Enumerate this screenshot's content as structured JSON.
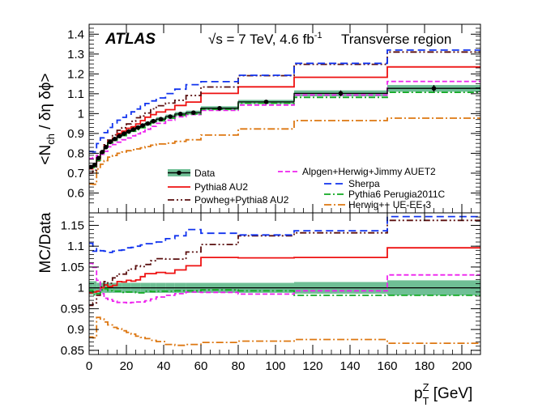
{
  "chart_data": [
    {
      "type": "line",
      "panel": "top",
      "title": "Transverse region",
      "experiment": "ATLAS",
      "energy_label": "√s = 7 TeV, 4.6 fb",
      "lumi_exponent": "-1",
      "ylabel": "<N",
      "ylabel_sub": "ch",
      "ylabel_tail": " / δη δϕ>",
      "ylim": [
        0.5,
        1.45
      ],
      "yticks": [
        0.6,
        0.7,
        0.8,
        0.9,
        1.0,
        1.1,
        1.2,
        1.3,
        1.4
      ],
      "ytick_labels": [
        "0.6",
        "0.7",
        "0.8",
        "0.9",
        "1",
        "1.1",
        "1.2",
        "1.3",
        "1.4"
      ],
      "bin_edges": [
        0,
        2,
        4,
        6,
        8,
        10,
        12.5,
        15,
        17.5,
        20,
        22.5,
        25,
        27.5,
        30,
        33,
        36,
        41,
        46,
        52,
        60,
        80,
        110,
        160,
        210
      ],
      "data": {
        "name": "Data",
        "values": [
          0.731,
          0.742,
          0.776,
          0.806,
          0.831,
          0.857,
          0.872,
          0.887,
          0.899,
          0.91,
          0.92,
          0.93,
          0.94,
          0.95,
          0.962,
          0.972,
          0.985,
          0.998,
          1.005,
          1.027,
          1.059,
          1.102,
          1.127
        ],
        "errors": [
          0.01,
          0.01,
          0.01,
          0.01,
          0.01,
          0.01,
          0.01,
          0.01,
          0.01,
          0.01,
          0.01,
          0.01,
          0.01,
          0.01,
          0.01,
          0.01,
          0.01,
          0.01,
          0.01,
          0.01,
          0.01,
          0.015,
          0.017
        ]
      },
      "series": [
        {
          "name": "Pythia8 AU2",
          "color": "#ee1111",
          "dash": "",
          "values": [
            0.722,
            0.735,
            0.77,
            0.806,
            0.837,
            0.86,
            0.877,
            0.9,
            0.912,
            0.926,
            0.934,
            0.948,
            0.965,
            0.982,
            0.995,
            1.008,
            1.02,
            1.041,
            1.058,
            1.102,
            1.135,
            1.183,
            1.235
          ]
        },
        {
          "name": "Powheg+Pythia8 AU2",
          "color": "#5a0f0f",
          "dash": "8 3 2 3 2 3",
          "values": [
            0.7,
            0.715,
            0.762,
            0.808,
            0.843,
            0.867,
            0.893,
            0.916,
            0.929,
            0.948,
            0.961,
            0.979,
            0.988,
            1.003,
            1.024,
            1.04,
            1.053,
            1.067,
            1.091,
            1.134,
            1.191,
            1.248,
            1.31
          ]
        },
        {
          "name": "Alpgen+Herwig+Jimmy AUET2",
          "color": "#ee22ee",
          "dash": "6 3",
          "values": [
            0.774,
            0.778,
            0.79,
            0.795,
            0.81,
            0.833,
            0.844,
            0.856,
            0.868,
            0.877,
            0.888,
            0.898,
            0.908,
            0.921,
            0.936,
            0.951,
            0.967,
            0.984,
            0.995,
            1.016,
            1.043,
            1.094,
            1.162
          ]
        },
        {
          "name": "Sherpa",
          "color": "#1133ee",
          "dash": "9 5",
          "values": [
            0.809,
            0.807,
            0.849,
            0.878,
            0.904,
            0.93,
            0.949,
            0.967,
            0.981,
            0.997,
            1.009,
            1.023,
            1.037,
            1.051,
            1.064,
            1.079,
            1.101,
            1.123,
            1.146,
            1.161,
            1.193,
            1.253,
            1.32
          ]
        },
        {
          "name": "Pythia6 Perugia2011C",
          "color": "#11aa22",
          "dash": "8 3 2 3",
          "values": [
            0.727,
            0.729,
            0.765,
            0.802,
            0.829,
            0.851,
            0.865,
            0.88,
            0.889,
            0.901,
            0.911,
            0.919,
            0.929,
            0.942,
            0.953,
            0.964,
            0.977,
            0.991,
            0.998,
            1.022,
            1.052,
            1.082,
            1.107
          ]
        },
        {
          "name": "Herwig++ UE-EE-3",
          "color": "#dd7711",
          "dash": "9 3 2 3",
          "values": [
            0.645,
            0.644,
            0.721,
            0.745,
            0.763,
            0.781,
            0.789,
            0.8,
            0.806,
            0.813,
            0.818,
            0.822,
            0.828,
            0.834,
            0.841,
            0.847,
            0.851,
            0.86,
            0.868,
            0.892,
            0.923,
            0.965,
            0.977
          ]
        }
      ]
    },
    {
      "type": "line",
      "panel": "bottom",
      "ylabel": "MC/Data",
      "xlabel": "p",
      "xlabel_sup": "Z",
      "xlabel_sub": "T",
      "xlabel_unit": " [GeV]",
      "xlim": [
        0,
        210
      ],
      "xticks": [
        0,
        20,
        40,
        60,
        80,
        100,
        120,
        140,
        160,
        180,
        200
      ],
      "xtick_labels": [
        "0",
        "20",
        "40",
        "60",
        "80",
        "100",
        "120",
        "140",
        "160",
        "180",
        "200"
      ],
      "ylim": [
        0.84,
        1.18
      ],
      "yticks": [
        0.85,
        0.9,
        0.95,
        1.0,
        1.05,
        1.1,
        1.15
      ],
      "ytick_labels": [
        "0.85",
        "0.9",
        "0.95",
        "1",
        "1.05",
        "1.1",
        "1.15"
      ],
      "band_halfwidth": [
        0.016,
        0.016,
        0.012,
        0.012,
        0.012,
        0.012,
        0.012,
        0.012,
        0.012,
        0.012,
        0.012,
        0.012,
        0.012,
        0.012,
        0.012,
        0.012,
        0.012,
        0.012,
        0.012,
        0.012,
        0.012,
        0.014,
        0.018
      ],
      "series": [
        {
          "name": "Pythia8 AU2",
          "values": [
            0.988,
            0.99,
            0.992,
            1.0,
            1.007,
            1.003,
            1.006,
            1.015,
            1.014,
            1.018,
            1.016,
            1.019,
            1.027,
            1.034,
            1.034,
            1.037,
            1.035,
            1.043,
            1.053,
            1.073,
            1.072,
            1.073,
            1.096
          ]
        },
        {
          "name": "Powheg+Pythia8 AU2",
          "values": [
            0.958,
            0.964,
            0.982,
            1.002,
            1.015,
            1.011,
            1.024,
            1.033,
            1.033,
            1.042,
            1.045,
            1.053,
            1.051,
            1.056,
            1.065,
            1.07,
            1.069,
            1.069,
            1.086,
            1.104,
            1.125,
            1.132,
            1.162
          ]
        },
        {
          "name": "Alpgen+Herwig+Jimmy AUET2",
          "values": [
            1.059,
            1.049,
            1.018,
            0.986,
            0.975,
            0.972,
            0.968,
            0.965,
            0.965,
            0.964,
            0.965,
            0.966,
            0.966,
            0.969,
            0.973,
            0.978,
            0.982,
            0.986,
            0.99,
            0.989,
            0.985,
            0.993,
            1.031
          ]
        },
        {
          "name": "Sherpa",
          "values": [
            1.107,
            1.088,
            1.094,
            1.089,
            1.088,
            1.085,
            1.088,
            1.09,
            1.091,
            1.096,
            1.097,
            1.1,
            1.103,
            1.106,
            1.106,
            1.11,
            1.118,
            1.125,
            1.14,
            1.131,
            1.127,
            1.137,
            1.171
          ]
        },
        {
          "name": "Pythia6 Perugia2011C",
          "values": [
            0.994,
            0.983,
            0.986,
            0.995,
            0.998,
            0.993,
            0.992,
            0.992,
            0.989,
            0.99,
            0.99,
            0.988,
            0.988,
            0.992,
            0.991,
            0.992,
            0.992,
            0.993,
            0.993,
            0.995,
            0.993,
            0.982,
            0.982
          ]
        },
        {
          "name": "Herwig++ UE-EE-3",
          "values": [
            0.882,
            0.88,
            0.929,
            0.925,
            0.918,
            0.911,
            0.905,
            0.902,
            0.897,
            0.893,
            0.889,
            0.884,
            0.881,
            0.878,
            0.874,
            0.871,
            0.864,
            0.862,
            0.864,
            0.869,
            0.872,
            0.876,
            0.867
          ]
        }
      ]
    }
  ]
}
